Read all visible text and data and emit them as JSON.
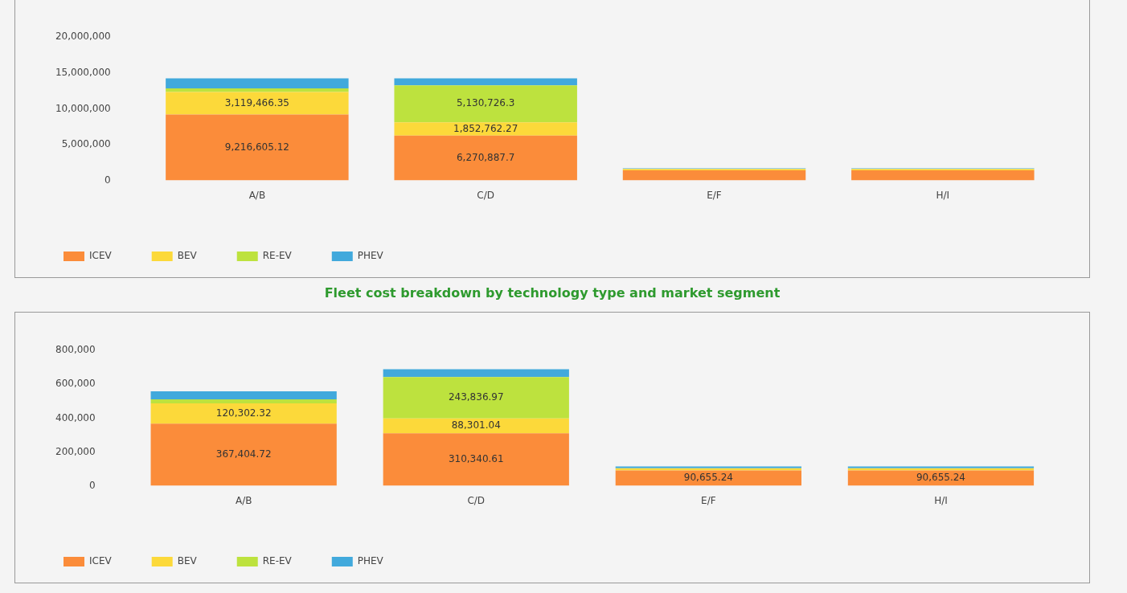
{
  "chart_data": [
    {
      "type": "bar",
      "stacked": true,
      "categories": [
        "A/B",
        "C/D",
        "E/F",
        "H/I"
      ],
      "ylim": [
        0,
        20000000
      ],
      "yticks": [
        0,
        {
          "value": 5000000,
          "label": "5,000,000"
        },
        {
          "value": 10000000,
          "label": "10,000,000"
        },
        {
          "value": 15000000,
          "label": "15,000,000"
        },
        {
          "value": 20000000,
          "label": "20,000,000"
        }
      ],
      "grid": false,
      "legend": "bottom left",
      "series": [
        {
          "name": "ICEV",
          "color": "#fb8c3a",
          "values": [
            9216605.12,
            6270887.7,
            1400000,
            1400000
          ],
          "value_labels": [
            "9,216,605.12",
            "6,270,887.7",
            null,
            null
          ]
        },
        {
          "name": "BEV",
          "color": "#fcd93a",
          "values": [
            3119466.35,
            1852762.27,
            200000,
            200000
          ],
          "value_labels": [
            "3,119,466.35",
            "1,852,762.27",
            null,
            null
          ]
        },
        {
          "name": "RE-EV",
          "color": "#bde23e",
          "values": [
            500000,
            5130726.3,
            0,
            0
          ],
          "value_labels": [
            null,
            "5,130,726.3",
            null,
            null
          ]
        },
        {
          "name": "PHEV",
          "color": "#41a9dc",
          "values": [
            1400000,
            1000000,
            100000,
            100000
          ],
          "value_labels": [
            null,
            null,
            null,
            null
          ]
        }
      ]
    },
    {
      "type": "bar",
      "stacked": true,
      "title": "Fleet cost breakdown by technology type and market segment",
      "categories": [
        "A/B",
        "C/D",
        "E/F",
        "H/I"
      ],
      "ylim": [
        0,
        800000
      ],
      "yticks": [
        0,
        {
          "value": 200000,
          "label": "200,000"
        },
        {
          "value": 400000,
          "label": "400,000"
        },
        {
          "value": 600000,
          "label": "600,000"
        },
        {
          "value": 800000,
          "label": "800,000"
        }
      ],
      "grid": false,
      "legend": "bottom left",
      "series": [
        {
          "name": "ICEV",
          "color": "#fb8c3a",
          "values": [
            367404.72,
            310340.61,
            90655.24,
            90655.24
          ],
          "value_labels": [
            "367,404.72",
            "310,340.61",
            "90,655.24",
            "90,655.24"
          ]
        },
        {
          "name": "BEV",
          "color": "#fcd93a",
          "values": [
            120302.32,
            88301.04,
            13000,
            13000
          ],
          "value_labels": [
            "120,302.32",
            "88,301.04",
            null,
            null
          ]
        },
        {
          "name": "RE-EV",
          "color": "#bde23e",
          "values": [
            23000,
            243836.97,
            0,
            0
          ],
          "value_labels": [
            null,
            "243,836.97",
            null,
            null
          ]
        },
        {
          "name": "PHEV",
          "color": "#41a9dc",
          "values": [
            48000,
            47000,
            11000,
            11000
          ],
          "value_labels": [
            null,
            null,
            null,
            null
          ]
        }
      ]
    }
  ]
}
